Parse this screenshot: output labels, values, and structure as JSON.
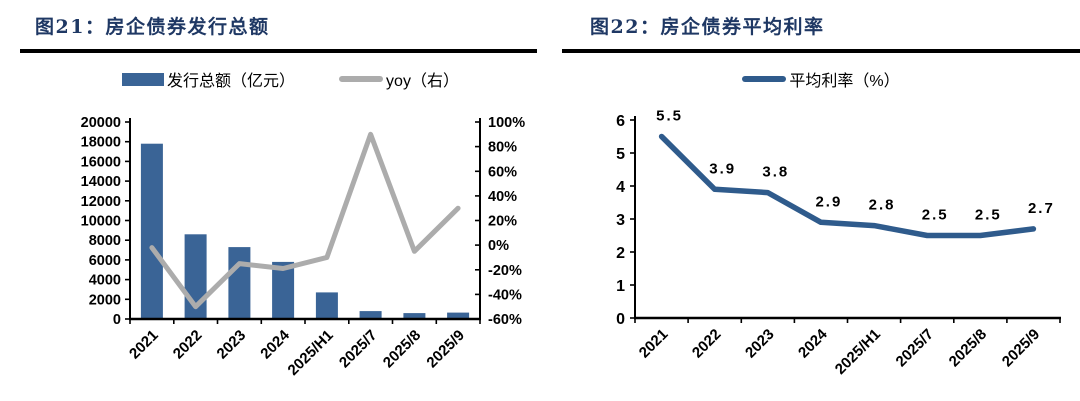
{
  "colors": {
    "title": "#1F3864",
    "rule": "#000000",
    "bar_blue": "#3A6496",
    "line_blue": "#2F5B8C",
    "line_gray": "#ACACAC",
    "axis": "#000000"
  },
  "figures": [
    {
      "title": "图21：房企债券发行总额",
      "legend": [
        {
          "label": "发行总额（亿元）",
          "marker": "bar",
          "color": "#3A6496"
        },
        {
          "label": "yoy（右）",
          "marker": "line",
          "color": "#ACACAC"
        }
      ]
    },
    {
      "title": "图22：房企债券平均利率",
      "legend": [
        {
          "label": "平均利率（%）",
          "marker": "line",
          "color": "#2F5B8C"
        }
      ]
    }
  ],
  "chart_data": [
    {
      "type": "bar",
      "title": "图21：房企债券发行总额",
      "legend_position": "top",
      "categories": [
        "2021",
        "2022",
        "2023",
        "2024",
        "2025/H1",
        "2025/7",
        "2025/8",
        "2025/9"
      ],
      "series": [
        {
          "name": "发行总额（亿元）",
          "kind": "bar",
          "axis": "left",
          "color": "#3A6496",
          "values": [
            17800,
            8600,
            7300,
            5800,
            2700,
            800,
            600,
            650
          ]
        },
        {
          "name": "yoy（右）",
          "kind": "line",
          "axis": "right",
          "color": "#ACACAC",
          "values": [
            -2,
            -50,
            -15,
            -19,
            -10,
            90,
            -5,
            30
          ]
        }
      ],
      "left_axis": {
        "min": 0,
        "max": 20000,
        "step": 2000,
        "tick_labels": [
          "0",
          "2000",
          "4000",
          "6000",
          "8000",
          "10000",
          "12000",
          "14000",
          "16000",
          "18000",
          "20000"
        ]
      },
      "right_axis": {
        "min": -60,
        "max": 100,
        "step": 20,
        "tick_labels": [
          "-60%",
          "-40%",
          "-20%",
          "0%",
          "20%",
          "40%",
          "60%",
          "80%",
          "100%"
        ]
      }
    },
    {
      "type": "line",
      "title": "图22：房企债券平均利率",
      "legend_position": "top",
      "categories": [
        "2021",
        "2022",
        "2023",
        "2024",
        "2025/H1",
        "2025/7",
        "2025/8",
        "2025/9"
      ],
      "series": [
        {
          "name": "平均利率（%）",
          "kind": "line",
          "color": "#2F5B8C",
          "values": [
            5.5,
            3.9,
            3.8,
            2.9,
            2.8,
            2.5,
            2.5,
            2.7
          ]
        }
      ],
      "data_labels": [
        "5.5",
        "3.9",
        "3.8",
        "2.9",
        "2.8",
        "2.5",
        "2.5",
        "2.7"
      ],
      "y_axis": {
        "min": 0,
        "max": 6,
        "step": 1,
        "tick_labels": [
          "0",
          "1",
          "2",
          "3",
          "4",
          "5",
          "6"
        ]
      }
    }
  ]
}
